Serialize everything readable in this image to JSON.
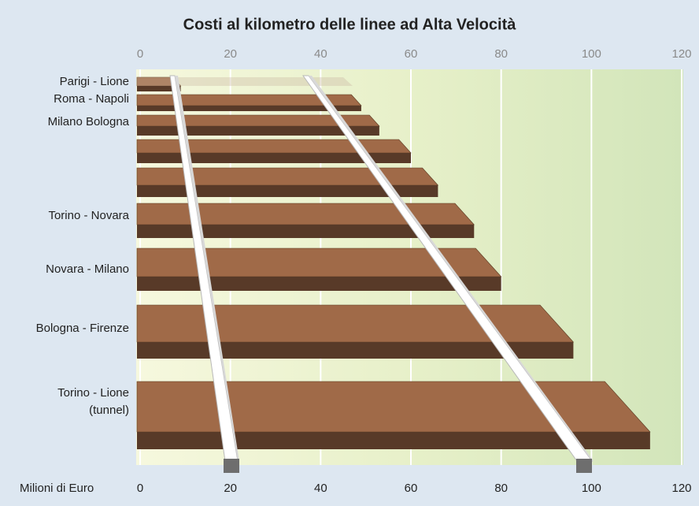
{
  "chart_data": {
    "type": "bar",
    "orientation": "horizontal",
    "title": "Costi al kilometro delle linee ad Alta Velocità",
    "xlabel": "Milioni di Euro",
    "categories": [
      "Parigi - Lione",
      "Roma - Napoli",
      "Milano Bologna",
      null,
      null,
      "Torino - Novara",
      "Novara - Milano",
      "Bologna - Firenze",
      "Torino - Lione\n(tunnel)"
    ],
    "values": [
      9,
      49,
      53,
      60,
      66,
      74,
      80,
      96,
      113
    ],
    "color": "#a06a48",
    "xlim": [
      0,
      120
    ],
    "xticks": [
      0,
      20,
      40,
      60,
      80,
      100,
      120
    ],
    "grid": true
  }
}
